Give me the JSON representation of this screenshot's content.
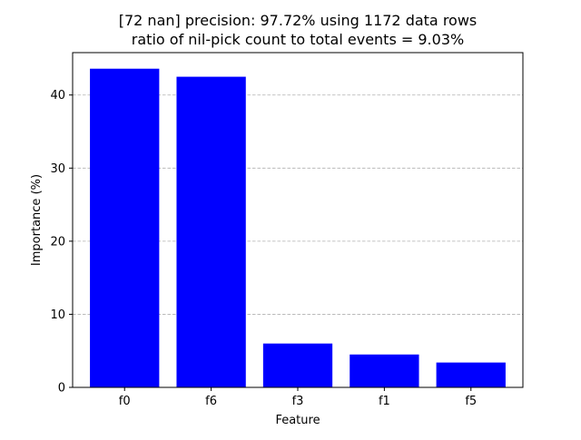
{
  "chart_data": {
    "type": "bar",
    "title_line1": "[72 nan] precision: 97.72% using 1172 data rows",
    "title_line2": "ratio of nil-pick count to total events = 9.03%",
    "xlabel": "Feature",
    "ylabel": "Importance (%)",
    "categories": [
      "f0",
      "f6",
      "f3",
      "f1",
      "f5"
    ],
    "values": [
      43.6,
      42.5,
      6.0,
      4.5,
      3.4
    ],
    "ylim": [
      0,
      45.8
    ],
    "yticks": [
      0,
      10,
      20,
      30,
      40
    ],
    "grid": "y-dashed",
    "bar_color": "#0000ff"
  }
}
